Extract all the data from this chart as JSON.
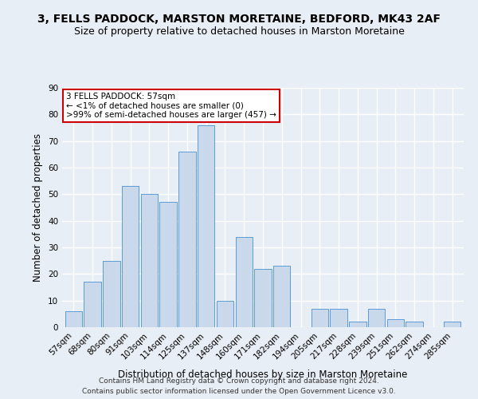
{
  "title1": "3, FELLS PADDOCK, MARSTON MORETAINE, BEDFORD, MK43 2AF",
  "title2": "Size of property relative to detached houses in Marston Moretaine",
  "xlabel": "Distribution of detached houses by size in Marston Moretaine",
  "ylabel": "Number of detached properties",
  "categories": [
    "57sqm",
    "68sqm",
    "80sqm",
    "91sqm",
    "103sqm",
    "114sqm",
    "125sqm",
    "137sqm",
    "148sqm",
    "160sqm",
    "171sqm",
    "182sqm",
    "194sqm",
    "205sqm",
    "217sqm",
    "228sqm",
    "239sqm",
    "251sqm",
    "262sqm",
    "274sqm",
    "285sqm"
  ],
  "values": [
    6,
    17,
    25,
    53,
    50,
    47,
    66,
    76,
    10,
    34,
    22,
    23,
    0,
    7,
    7,
    2,
    7,
    3,
    2,
    0,
    2
  ],
  "bar_color": "#c9d9eb",
  "bar_edge_color": "#5b9bd5",
  "annotation_line1": "3 FELLS PADDOCK: 57sqm",
  "annotation_line2": "← <1% of detached houses are smaller (0)",
  "annotation_line3": ">99% of semi-detached houses are larger (457) →",
  "annotation_box_facecolor": "#ffffff",
  "annotation_box_edgecolor": "#cc0000",
  "ylim": [
    0,
    90
  ],
  "yticks": [
    0,
    10,
    20,
    30,
    40,
    50,
    60,
    70,
    80,
    90
  ],
  "background_color": "#e8eef5",
  "grid_color": "#ffffff",
  "footer1": "Contains HM Land Registry data © Crown copyright and database right 2024.",
  "footer2": "Contains public sector information licensed under the Open Government Licence v3.0.",
  "title1_fontsize": 10,
  "title2_fontsize": 9,
  "xlabel_fontsize": 8.5,
  "ylabel_fontsize": 8.5,
  "tick_fontsize": 7.5,
  "annotation_fontsize": 7.5,
  "footer_fontsize": 6.5
}
